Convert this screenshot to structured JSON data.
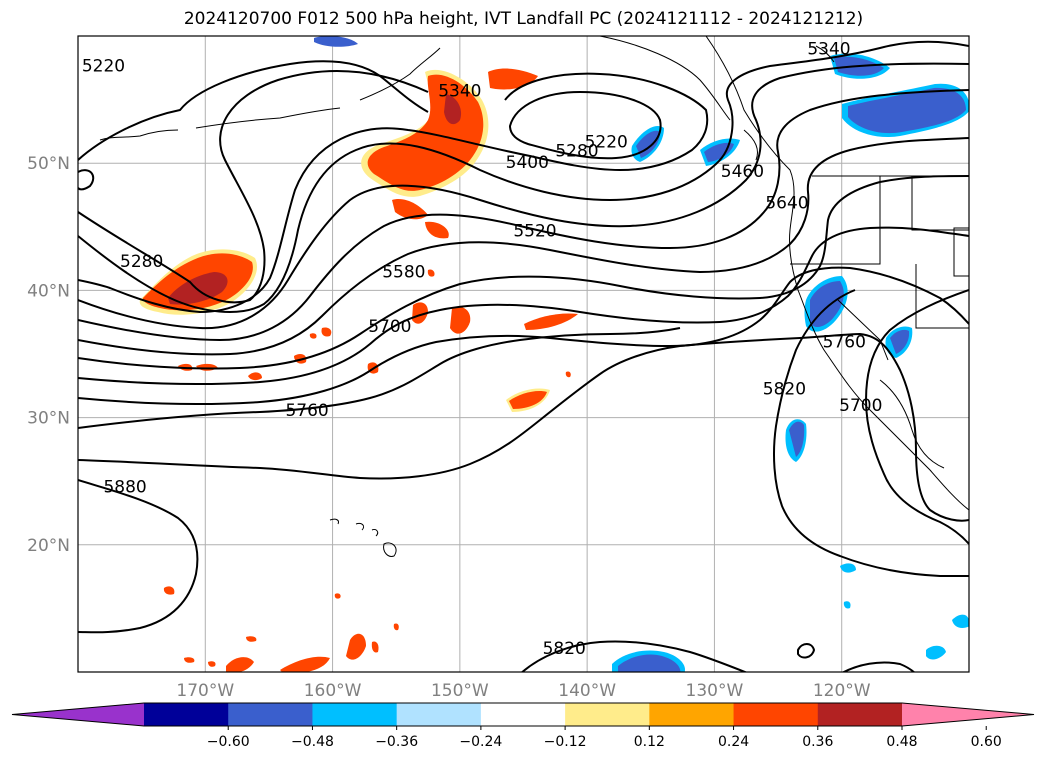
{
  "title": "2024120700 F012 500 hPa height, IVT Landfall PC (2024121112 - 2024121212)",
  "map": {
    "lon_range": [
      -180,
      -110
    ],
    "lat_range": [
      10,
      60
    ],
    "lat_ticks": [
      {
        "value": 50,
        "label": "50°N"
      },
      {
        "value": 40,
        "label": "40°N"
      },
      {
        "value": 30,
        "label": "30°N"
      },
      {
        "value": 20,
        "label": "20°N"
      }
    ],
    "lon_ticks": [
      {
        "value": -170,
        "label": "170°W"
      },
      {
        "value": -160,
        "label": "160°W"
      },
      {
        "value": -150,
        "label": "150°W"
      },
      {
        "value": -140,
        "label": "140°W"
      },
      {
        "value": -130,
        "label": "130°W"
      },
      {
        "value": -120,
        "label": "120°W"
      }
    ],
    "grid": true,
    "contour_labels": [
      {
        "text": "5220",
        "lon": -178.0,
        "lat": 57.7
      },
      {
        "text": "5220",
        "lon": -138.5,
        "lat": 51.7
      },
      {
        "text": "5280",
        "lon": -140.8,
        "lat": 51.0
      },
      {
        "text": "5280",
        "lon": -175.0,
        "lat": 42.3
      },
      {
        "text": "5340",
        "lon": -150.0,
        "lat": 55.7
      },
      {
        "text": "5340",
        "lon": -121.0,
        "lat": 59.0
      },
      {
        "text": "5400",
        "lon": -144.7,
        "lat": 50.1
      },
      {
        "text": "5460",
        "lon": -127.8,
        "lat": 49.4
      },
      {
        "text": "5520",
        "lon": -144.1,
        "lat": 44.7
      },
      {
        "text": "5580",
        "lon": -154.4,
        "lat": 41.5
      },
      {
        "text": "5640",
        "lon": -124.3,
        "lat": 46.9
      },
      {
        "text": "5700",
        "lon": -155.5,
        "lat": 37.2
      },
      {
        "text": "5700",
        "lon": -118.5,
        "lat": 31.0
      },
      {
        "text": "5760",
        "lon": -162.0,
        "lat": 30.6
      },
      {
        "text": "5760",
        "lon": -119.8,
        "lat": 36.0
      },
      {
        "text": "5820",
        "lon": -124.5,
        "lat": 32.3
      },
      {
        "text": "5820",
        "lon": -141.8,
        "lat": 11.9
      },
      {
        "text": "5880",
        "lon": -176.3,
        "lat": 24.6
      }
    ]
  },
  "colorbar": {
    "ticks": [
      "−0.60",
      "−0.48",
      "−0.36",
      "−0.24",
      "−0.12",
      "0.12",
      "0.24",
      "0.36",
      "0.48",
      "0.60"
    ],
    "colors": [
      "#9932cc",
      "#000099",
      "#3a5fcd",
      "#00bfff",
      "#b0e2ff",
      "#ffffff",
      "#ffec8b",
      "#ffa500",
      "#ff4500",
      "#b22222",
      "#ff82ab"
    ]
  }
}
